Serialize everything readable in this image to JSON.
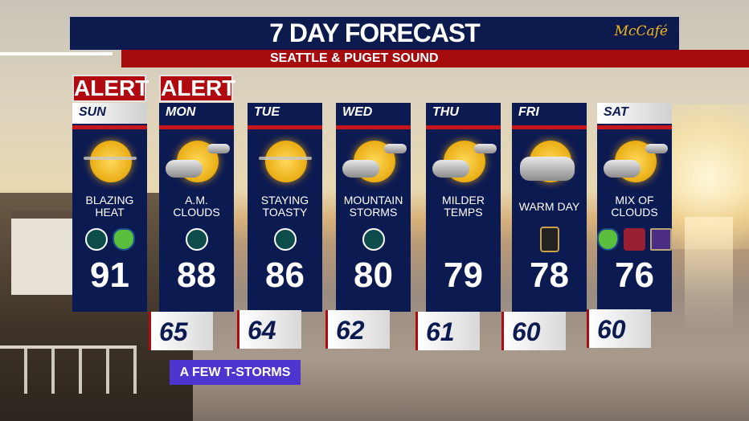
{
  "header": {
    "title": "7 DAY FORECAST",
    "sponsor": "McCafé",
    "subtitle": "SEATTLE & PUGET SOUND"
  },
  "colors": {
    "navy": "#0c1a52",
    "red": "#b0090f",
    "note": "#4f35d0"
  },
  "days": [
    {
      "day": "SUN",
      "alert": "ALERT",
      "desc": "BLAZING\nHEAT",
      "high": "91",
      "low": "",
      "icon": "hazy-sun",
      "teams": [
        "mariners-logo",
        "sounders-logo"
      ]
    },
    {
      "day": "MON",
      "alert": "ALERT",
      "desc": "A.M.\nCLOUDS",
      "high": "88",
      "low": "65",
      "icon": "sun-cloud",
      "teams": [
        "mariners-logo"
      ]
    },
    {
      "day": "TUE",
      "alert": "",
      "desc": "STAYING\nTOASTY",
      "high": "86",
      "low": "64",
      "icon": "hazy-sun",
      "teams": [
        "mariners-logo"
      ]
    },
    {
      "day": "WED",
      "alert": "",
      "desc": "MOUNTAIN\nSTORMS",
      "high": "80",
      "low": "62",
      "icon": "sun-cloud",
      "teams": [
        "mariners-logo"
      ]
    },
    {
      "day": "THU",
      "alert": "",
      "desc": "MILDER\nTEMPS",
      "high": "79",
      "low": "61",
      "icon": "sun-cloud",
      "teams": []
    },
    {
      "day": "FRI",
      "alert": "",
      "desc": "WARM DAY",
      "high": "78",
      "low": "60",
      "icon": "sun-big-cloud",
      "teams": [
        "reign-logo"
      ]
    },
    {
      "day": "SAT",
      "alert": "",
      "desc": "MIX OF\nCLOUDS",
      "high": "76",
      "low": "60",
      "icon": "sun-cloud",
      "teams": [
        "sounders-logo",
        "wsu-logo",
        "uw-logo"
      ]
    }
  ],
  "note": "A FEW T-STORMS"
}
